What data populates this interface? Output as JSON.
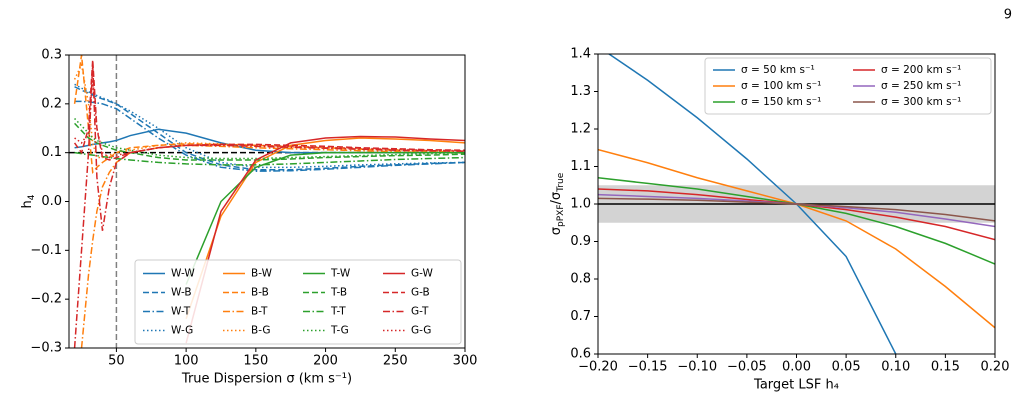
{
  "page_number": "9",
  "chart_data": [
    {
      "type": "line",
      "xlabel": "True Dispersion σ (km s⁻¹)",
      "ylabel": [
        "h",
        "4"
      ],
      "x": [
        20,
        25,
        30,
        33,
        36,
        40,
        45,
        50,
        60,
        80,
        100,
        125,
        150,
        175,
        200,
        225,
        250,
        275,
        300
      ],
      "xlim": [
        16,
        300
      ],
      "ylim": [
        -0.3,
        0.3
      ],
      "xticks": [
        50,
        100,
        150,
        200,
        250,
        300
      ],
      "yticks": [
        {
          "value": -0.3,
          "label": "−0.3"
        },
        {
          "value": -0.2,
          "label": "−0.2"
        },
        {
          "value": -0.1,
          "label": "−0.1"
        },
        {
          "value": 0,
          "label": "0.0"
        },
        0.1,
        0.2,
        0.3
      ],
      "hlines": [
        {
          "y": 0.1,
          "color": "#000000",
          "style": "dashed"
        }
      ],
      "vlines": [
        {
          "x": 50,
          "color": "#808080",
          "style": "dashed"
        }
      ],
      "legend": "lower right",
      "legend_columns": 4,
      "series": [
        {
          "name": "W-W",
          "color": "#1f77b4",
          "style": "solid",
          "values": [
            0.11,
            0.112,
            0.115,
            0.117,
            0.118,
            0.12,
            0.122,
            0.125,
            0.135,
            0.148,
            0.14,
            0.12,
            0.105,
            0.1,
            0.1,
            0.1,
            0.1,
            0.1,
            0.1
          ]
        },
        {
          "name": "W-B",
          "color": "#1f77b4",
          "style": "dashed",
          "values": [
            0.235,
            0.228,
            0.222,
            0.218,
            0.214,
            0.21,
            0.205,
            0.2,
            0.18,
            0.14,
            0.1,
            0.075,
            0.065,
            0.065,
            0.068,
            0.072,
            0.075,
            0.078,
            0.08
          ]
        },
        {
          "name": "W-T",
          "color": "#1f77b4",
          "style": "dashdot",
          "values": [
            0.205,
            0.205,
            0.204,
            0.203,
            0.202,
            0.2,
            0.195,
            0.19,
            0.17,
            0.13,
            0.095,
            0.07,
            0.062,
            0.063,
            0.066,
            0.07,
            0.074,
            0.077,
            0.08
          ]
        },
        {
          "name": "W-G",
          "color": "#1f77b4",
          "style": "dotted",
          "values": [
            0.24,
            0.232,
            0.225,
            0.22,
            0.217,
            0.212,
            0.207,
            0.2,
            0.185,
            0.15,
            0.11,
            0.08,
            0.07,
            0.07,
            0.072,
            0.075,
            0.077,
            0.079,
            0.08
          ]
        },
        {
          "name": "B-W",
          "color": "#ff7f0e",
          "style": "solid",
          "values": [
            null,
            null,
            null,
            null,
            null,
            null,
            null,
            null,
            null,
            null,
            -0.24,
            -0.03,
            0.08,
            0.115,
            0.125,
            0.13,
            0.128,
            0.125,
            0.12
          ]
        },
        {
          "name": "B-B",
          "color": "#ff7f0e",
          "style": "dashed",
          "values": [
            0.2,
            0.3,
            0.15,
            0.06,
            0.07,
            0.08,
            0.09,
            0.1,
            0.11,
            0.115,
            0.118,
            0.117,
            0.115,
            0.112,
            0.11,
            0.107,
            0.105,
            0.103,
            0.1
          ]
        },
        {
          "name": "B-T",
          "color": "#ff7f0e",
          "style": "dashdot",
          "values": [
            null,
            -0.3,
            -0.15,
            -0.08,
            -0.02,
            0.03,
            0.06,
            0.08,
            0.1,
            0.11,
            0.115,
            0.113,
            0.11,
            0.108,
            0.106,
            0.104,
            0.102,
            0.1,
            0.1
          ]
        },
        {
          "name": "B-G",
          "color": "#ff7f0e",
          "style": "dotted",
          "values": [
            0.25,
            0.28,
            0.2,
            0.12,
            0.09,
            0.09,
            0.095,
            0.1,
            0.105,
            0.115,
            0.12,
            0.118,
            0.115,
            0.112,
            0.11,
            0.108,
            0.106,
            0.104,
            0.102
          ]
        },
        {
          "name": "T-W",
          "color": "#2ca02c",
          "style": "solid",
          "values": [
            null,
            null,
            null,
            null,
            null,
            null,
            null,
            null,
            null,
            null,
            -0.17,
            0.0,
            0.07,
            0.095,
            0.1,
            0.1,
            0.1,
            0.1,
            0.1
          ]
        },
        {
          "name": "T-B",
          "color": "#2ca02c",
          "style": "dashed",
          "values": [
            0.16,
            0.145,
            0.13,
            0.125,
            0.12,
            0.115,
            0.11,
            0.105,
            0.1,
            0.09,
            0.085,
            0.085,
            0.085,
            0.087,
            0.09,
            0.092,
            0.094,
            0.095,
            0.097
          ]
        },
        {
          "name": "T-T",
          "color": "#2ca02c",
          "style": "dashdot",
          "values": [
            0.1,
            0.098,
            0.096,
            0.095,
            0.094,
            0.092,
            0.09,
            0.088,
            0.085,
            0.08,
            0.077,
            0.075,
            0.075,
            0.077,
            0.08,
            0.083,
            0.086,
            0.088,
            0.09
          ]
        },
        {
          "name": "T-G",
          "color": "#2ca02c",
          "style": "dotted",
          "values": [
            0.17,
            0.155,
            0.14,
            0.13,
            0.125,
            0.12,
            0.115,
            0.11,
            0.105,
            0.095,
            0.09,
            0.088,
            0.088,
            0.09,
            0.092,
            0.094,
            0.096,
            0.098,
            0.1
          ]
        },
        {
          "name": "G-W",
          "color": "#d62728",
          "style": "solid",
          "values": [
            null,
            null,
            null,
            null,
            null,
            null,
            null,
            null,
            null,
            null,
            -0.29,
            -0.02,
            0.085,
            0.12,
            0.13,
            0.133,
            0.132,
            0.128,
            0.125
          ]
        },
        {
          "name": "G-B",
          "color": "#d62728",
          "style": "dashed",
          "values": [
            0.12,
            0.1,
            0.15,
            0.29,
            0.15,
            0.09,
            0.085,
            0.09,
            0.1,
            0.11,
            0.115,
            0.117,
            0.117,
            0.115,
            0.113,
            0.11,
            0.108,
            0.106,
            0.105
          ]
        },
        {
          "name": "G-T",
          "color": "#d62728",
          "style": "dashdot",
          "values": [
            -0.3,
            -0.1,
            0.1,
            0.28,
            0.05,
            -0.06,
            0.03,
            0.08,
            0.1,
            0.11,
            0.115,
            0.115,
            0.113,
            0.111,
            0.109,
            0.107,
            0.105,
            0.104,
            0.103
          ]
        },
        {
          "name": "G-G",
          "color": "#d62728",
          "style": "dotted",
          "values": [
            0.13,
            0.12,
            0.14,
            0.25,
            0.15,
            0.1,
            0.09,
            0.095,
            0.1,
            0.11,
            0.115,
            0.116,
            0.115,
            0.113,
            0.111,
            0.109,
            0.107,
            0.105,
            0.104
          ]
        }
      ]
    },
    {
      "type": "line",
      "xlabel": "Target LSF h₄",
      "ylabel": [
        "σ",
        "pPXF",
        "/σ",
        "True"
      ],
      "x": [
        -0.2,
        -0.15,
        -0.1,
        -0.05,
        0,
        0.05,
        0.1,
        0.15,
        0.2
      ],
      "xlim": [
        -0.2,
        0.2
      ],
      "ylim": [
        0.6,
        1.4
      ],
      "xticks": [
        {
          "value": -0.2,
          "label": "−0.20"
        },
        {
          "value": -0.15,
          "label": "−0.15"
        },
        {
          "value": -0.1,
          "label": "−0.10"
        },
        {
          "value": -0.05,
          "label": "−0.05"
        },
        {
          "value": 0,
          "label": "0.00"
        },
        0.05,
        {
          "value": 0.1,
          "label": "0.10"
        },
        0.15,
        {
          "value": 0.2,
          "label": "0.20"
        }
      ],
      "yticks": [
        0.6,
        0.7,
        0.8,
        0.9,
        {
          "value": 1,
          "label": "1.0"
        },
        1.1,
        1.2,
        1.3,
        1.4
      ],
      "hband": {
        "range": [
          0.95,
          1.05
        ],
        "color": "#d3d3d3"
      },
      "hlines": [
        {
          "y": 1,
          "color": "#000000",
          "style": "solid"
        }
      ],
      "legend": "upper right",
      "legend_columns": 2,
      "series": [
        {
          "name": "σ = 50 km s⁻¹",
          "color": "#1f77b4",
          "style": "solid",
          "values": [
            1.42,
            1.33,
            1.23,
            1.12,
            1.0,
            0.86,
            0.6,
            null,
            null
          ]
        },
        {
          "name": "σ = 100 km s⁻¹",
          "color": "#ff7f0e",
          "style": "solid",
          "values": [
            1.145,
            1.11,
            1.07,
            1.035,
            1.0,
            0.955,
            0.88,
            0.78,
            0.67
          ]
        },
        {
          "name": "σ = 150 km s⁻¹",
          "color": "#2ca02c",
          "style": "solid",
          "values": [
            1.07,
            1.055,
            1.04,
            1.02,
            1.0,
            0.975,
            0.94,
            0.895,
            0.84
          ]
        },
        {
          "name": "σ = 200 km s⁻¹",
          "color": "#d62728",
          "style": "solid",
          "values": [
            1.04,
            1.035,
            1.025,
            1.012,
            1.0,
            0.985,
            0.965,
            0.94,
            0.905
          ]
        },
        {
          "name": "σ = 250 km s⁻¹",
          "color": "#9467bd",
          "style": "solid",
          "values": [
            1.025,
            1.02,
            1.015,
            1.008,
            1.0,
            0.99,
            0.978,
            0.96,
            0.94
          ]
        },
        {
          "name": "σ = 300 km s⁻¹",
          "color": "#8c564b",
          "style": "solid",
          "values": [
            1.015,
            1.013,
            1.01,
            1.005,
            1.0,
            0.993,
            0.985,
            0.972,
            0.955
          ]
        }
      ]
    }
  ]
}
